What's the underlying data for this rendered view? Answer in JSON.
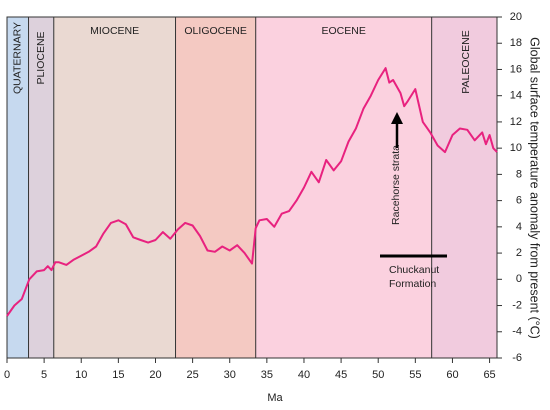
{
  "chart_data": {
    "type": "line",
    "x_label": "Ma",
    "y_label": "Global surface temperature anomaly from present (°C)",
    "xlim": [
      0,
      66
    ],
    "xticks": [
      0,
      5,
      10,
      15,
      20,
      25,
      30,
      35,
      40,
      45,
      50,
      55,
      60,
      65
    ],
    "ylim": [
      -6,
      20
    ],
    "yticks": [
      -6,
      -4,
      -2,
      0,
      2,
      4,
      6,
      8,
      10,
      12,
      14,
      16,
      18,
      20
    ],
    "epochs": [
      {
        "name": "QUATERNARY",
        "start": 0,
        "end": 2.9,
        "color": "#c6d9ef",
        "vertical": true
      },
      {
        "name": "PLIOCENE",
        "start": 2.9,
        "end": 6.3,
        "color": "#ddd1dc",
        "vertical": true
      },
      {
        "name": "MIOCENE",
        "start": 6.3,
        "end": 22.7,
        "color": "#ead9d2",
        "vertical": false
      },
      {
        "name": "OLIGOCENE",
        "start": 22.7,
        "end": 33.5,
        "color": "#f4c9c2",
        "vertical": false
      },
      {
        "name": "EOCENE",
        "start": 33.5,
        "end": 57.2,
        "color": "#fbd1df",
        "vertical": false
      },
      {
        "name": "PALEOCENE",
        "start": 57.2,
        "end": 66,
        "color": "#f1cbde",
        "vertical": true
      }
    ],
    "annotations": [
      "Racehorse strata",
      "Chuckanut",
      "Formation"
    ],
    "series": [
      {
        "name": "temperature",
        "color": "#e8227f",
        "x": [
          0,
          1,
          2,
          3,
          4,
          5,
          5.5,
          6,
          6.5,
          7,
          8,
          9,
          10,
          11,
          12,
          13,
          14,
          15,
          16,
          17,
          18,
          19,
          20,
          21,
          22,
          23,
          24,
          25,
          26,
          27,
          28,
          29,
          30,
          31,
          32,
          33,
          33.5,
          34,
          35,
          36,
          37,
          38,
          39,
          40,
          41,
          42,
          43,
          44,
          45,
          46,
          47,
          48,
          49,
          50,
          51,
          51.5,
          52,
          53,
          53.5,
          54,
          55,
          56,
          57,
          58,
          59,
          60,
          61,
          62,
          63,
          64,
          64.5,
          65,
          65.5,
          66
        ],
        "values": [
          -2.8,
          -2,
          -1.5,
          0,
          0.6,
          0.7,
          1,
          0.7,
          1.3,
          1.3,
          1.1,
          1.5,
          1.8,
          2.1,
          2.5,
          3.5,
          4.3,
          4.5,
          4.2,
          3.2,
          3,
          2.8,
          3,
          3.6,
          3.1,
          3.8,
          4.3,
          4.1,
          3.3,
          2.2,
          2.1,
          2.5,
          2.2,
          2.6,
          2,
          1.2,
          3.9,
          4.5,
          4.6,
          4,
          5,
          5.2,
          6,
          7,
          8.2,
          7.4,
          9.1,
          8.3,
          9,
          10.5,
          11.5,
          13,
          14,
          15.2,
          16.1,
          15,
          15.2,
          14.2,
          13.2,
          13.6,
          14.5,
          12,
          11.2,
          10.2,
          9.7,
          11,
          11.5,
          11.4,
          10.6,
          11.2,
          10.3,
          11,
          10,
          9.7
        ]
      }
    ]
  }
}
